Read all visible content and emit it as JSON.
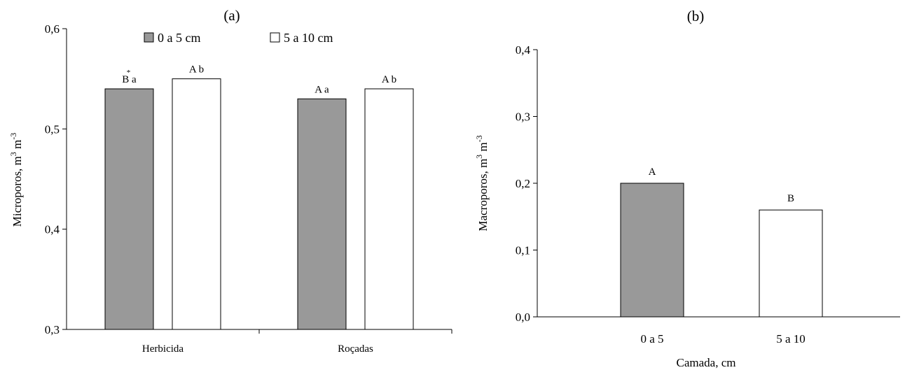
{
  "colors": {
    "gray": "#999999",
    "white": "#ffffff",
    "axis": "#000000"
  },
  "chart_data": [
    {
      "type": "bar",
      "title": "(a)",
      "ylabel": "Microporos, m³ m⁻³",
      "ylabel_main": "Microporos, m",
      "ylabel_sup1": "3",
      "ylabel_mid": " m",
      "ylabel_sup2": "-3",
      "xlabel": "",
      "ylim": [
        0.3,
        0.6
      ],
      "yticks": [
        "0,3",
        "0,4",
        "0,5",
        "0,6"
      ],
      "ytick_values": [
        0.3,
        0.4,
        0.5,
        0.6
      ],
      "categories": [
        "Herbicida",
        "Roçadas"
      ],
      "legend": [
        "0 a 5 cm",
        "5 a 10 cm"
      ],
      "legend_position": "top",
      "series": [
        {
          "name": "0 a 5 cm",
          "values": [
            0.54,
            0.53
          ],
          "labels": [
            "B a",
            "A a"
          ],
          "color": "#999999"
        },
        {
          "name": "5 a 10 cm",
          "values": [
            0.55,
            0.54
          ],
          "labels": [
            "A b",
            "A b"
          ],
          "color": "#ffffff"
        }
      ],
      "annotation_marker": "*"
    },
    {
      "type": "bar",
      "title": "(b)",
      "ylabel": "Macroporos, m³ m⁻³",
      "ylabel_main": "Macroporos, m",
      "ylabel_sup1": "3",
      "ylabel_mid": " m",
      "ylabel_sup2": "-3",
      "xlabel": "Camada, cm",
      "ylim": [
        0.0,
        0.4
      ],
      "yticks": [
        "0,0",
        "0,1",
        "0,2",
        "0,3",
        "0,4"
      ],
      "ytick_values": [
        0.0,
        0.1,
        0.2,
        0.3,
        0.4
      ],
      "categories": [
        "0 a 5",
        "5 a 10"
      ],
      "values": [
        0.2,
        0.16
      ],
      "labels": [
        "A",
        "B"
      ],
      "colors": [
        "#999999",
        "#ffffff"
      ]
    }
  ]
}
